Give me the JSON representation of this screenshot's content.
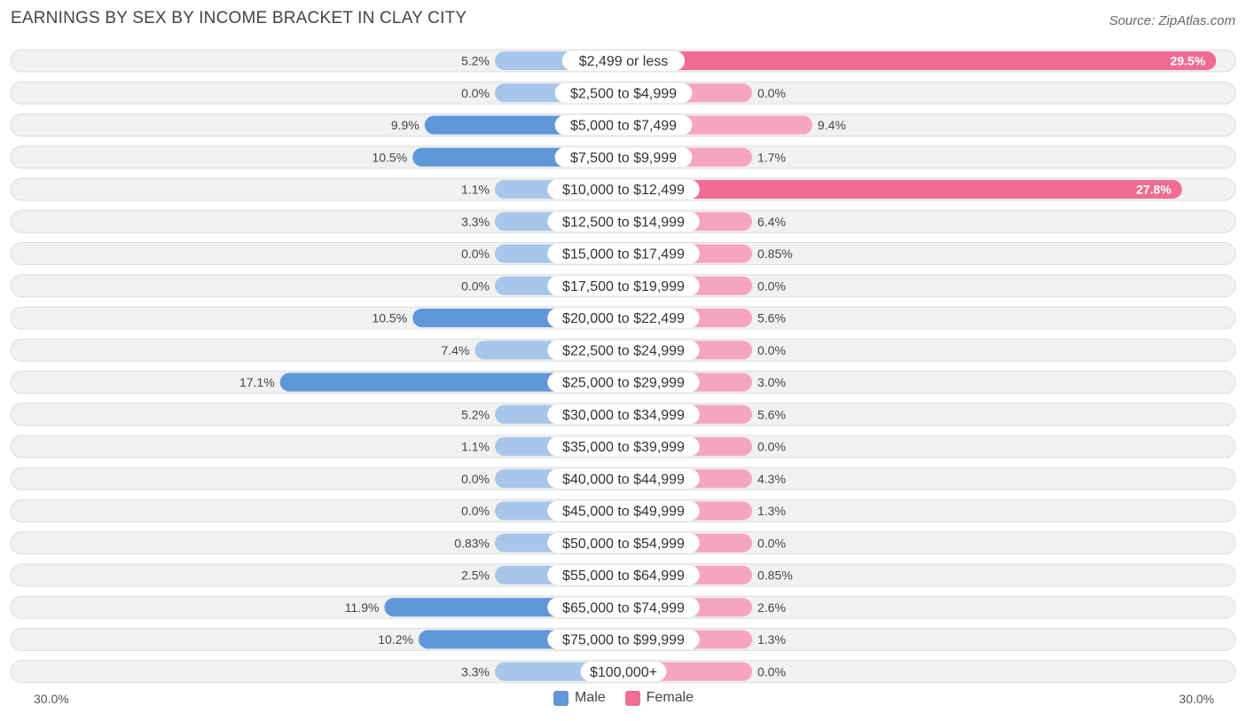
{
  "colors": {
    "male_dark": "#5f97d9",
    "male_light": "#a7c7ea",
    "female_dark": "#f06c95",
    "female_light": "#f6a5bf",
    "row_bg": "#f1f1f1",
    "row_border": "#dddddd"
  },
  "chart_data": {
    "type": "bar",
    "orientation": "horizontal-diverging",
    "title": "EARNINGS BY SEX BY INCOME BRACKET IN CLAY CITY",
    "source": "Source: ZipAtlas.com",
    "axis_min_label": "30.0%",
    "axis_max_label": "30.0%",
    "xlim": [
      -30,
      30
    ],
    "categories": [
      "$2,499 or less",
      "$2,500 to $4,999",
      "$5,000 to $7,499",
      "$7,500 to $9,999",
      "$10,000 to $12,499",
      "$12,500 to $14,999",
      "$15,000 to $17,499",
      "$17,500 to $19,999",
      "$20,000 to $22,499",
      "$22,500 to $24,999",
      "$25,000 to $29,999",
      "$30,000 to $34,999",
      "$35,000 to $39,999",
      "$40,000 to $44,999",
      "$45,000 to $49,999",
      "$50,000 to $54,999",
      "$55,000 to $64,999",
      "$65,000 to $74,999",
      "$75,000 to $99,999",
      "$100,000+"
    ],
    "series": [
      {
        "name": "Male",
        "values": [
          5.2,
          0.0,
          9.9,
          10.5,
          1.1,
          3.3,
          0.0,
          0.0,
          10.5,
          7.4,
          17.1,
          5.2,
          1.1,
          0.0,
          0.0,
          0.83,
          2.5,
          11.9,
          10.2,
          3.3
        ],
        "labels": [
          "5.2%",
          "0.0%",
          "9.9%",
          "10.5%",
          "1.1%",
          "3.3%",
          "0.0%",
          "0.0%",
          "10.5%",
          "7.4%",
          "17.1%",
          "5.2%",
          "1.1%",
          "0.0%",
          "0.0%",
          "0.83%",
          "2.5%",
          "11.9%",
          "10.2%",
          "3.3%"
        ]
      },
      {
        "name": "Female",
        "values": [
          29.5,
          0.0,
          9.4,
          1.7,
          27.8,
          6.4,
          0.85,
          0.0,
          5.6,
          0.0,
          3.0,
          5.6,
          0.0,
          4.3,
          1.3,
          0.0,
          0.85,
          2.6,
          1.3,
          0.0
        ],
        "labels": [
          "29.5%",
          "0.0%",
          "9.4%",
          "1.7%",
          "27.8%",
          "6.4%",
          "0.85%",
          "0.0%",
          "5.6%",
          "0.0%",
          "3.0%",
          "5.6%",
          "0.0%",
          "4.3%",
          "1.3%",
          "0.0%",
          "0.85%",
          "2.6%",
          "1.3%",
          "0.0%"
        ]
      }
    ],
    "legend": [
      "Male",
      "Female"
    ]
  }
}
